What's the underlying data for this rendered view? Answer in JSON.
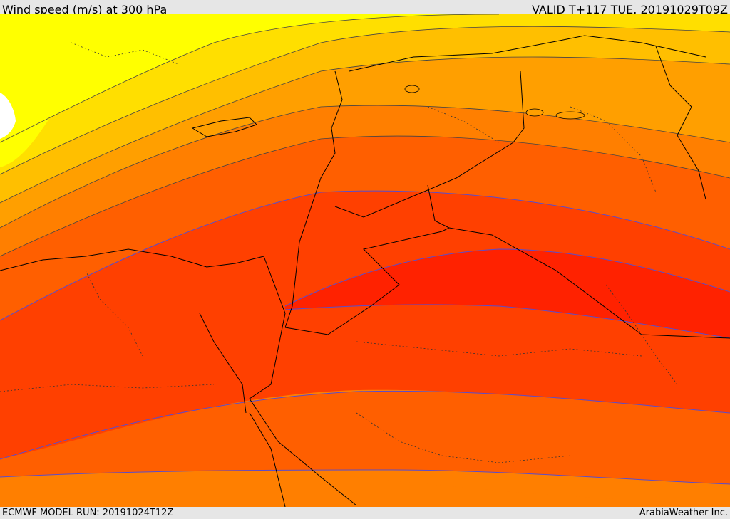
{
  "header": {
    "title": "Wind speed (m/s) at 300 hPa",
    "valid_time": "VALID T+117 TUE. 20191029T09Z"
  },
  "footer": {
    "model_run": "ECMWF MODEL RUN: 20191024T12Z",
    "credit": "ArabiaWeather Inc."
  },
  "map": {
    "field": "wind speed",
    "level": "300 hPa",
    "jet_core_color": "#ff2200",
    "palette": [
      "#ffff00",
      "#ffdf00",
      "#ffbf00",
      "#ff9f00",
      "#ff7f00",
      "#ff5f00",
      "#ff4000",
      "#ff2200"
    ],
    "contour_line_color": "#5a4ccc",
    "border_color": "#000000",
    "land_color": "#ffffff"
  }
}
